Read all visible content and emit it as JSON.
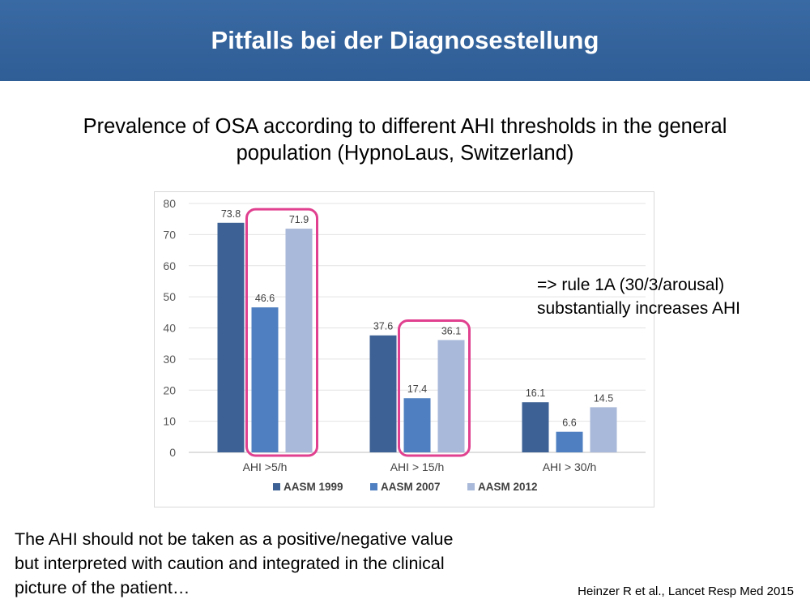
{
  "header": {
    "title": "Pitfalls bei der Diagnosestellung"
  },
  "subtitle": [
    "Prevalence of OSA according to different AHI thresholds in the general",
    "population (HypnoLaus, Switzerland)"
  ],
  "annotation": [
    "=> rule 1A (30/3/arousal)",
    "substantially increases AHI"
  ],
  "conclusion": [
    "The AHI should not be taken as a positive/negative value",
    "but interpreted with caution and integrated in the clinical",
    "picture of the patient…"
  ],
  "citation": "Heinzer R et al., Lancet Resp Med 2015",
  "colors": {
    "header": "#2f5d96",
    "highlight": "#e0408f"
  },
  "chart_data": {
    "type": "bar",
    "categories": [
      "AHI >5/h",
      "AHI > 15/h",
      "AHI > 30/h"
    ],
    "series": [
      {
        "name": "AASM 1999",
        "color": "#3d6194",
        "values": [
          73.8,
          37.6,
          16.1
        ],
        "labels": [
          "73.8",
          "37.6",
          "16.1"
        ]
      },
      {
        "name": "AASM 2007",
        "color": "#4f7fc0",
        "values": [
          46.6,
          17.4,
          6.6
        ],
        "labels": [
          "46.6",
          "17.4",
          "6.6"
        ]
      },
      {
        "name": "AASM 2012",
        "color": "#a9b9d9",
        "values": [
          71.9,
          36.1,
          14.5
        ],
        "labels": [
          "71.9",
          "36.1",
          "14.5"
        ]
      }
    ],
    "ylim": [
      0,
      80
    ],
    "yticks": [
      "0",
      "10",
      "20",
      "30",
      "40",
      "50",
      "60",
      "70",
      "80"
    ],
    "grid": true,
    "legend_position": "bottom",
    "highlighted_groups": [
      0,
      1
    ],
    "highlighted_series": [
      "AASM 2007",
      "AASM 2012"
    ]
  }
}
